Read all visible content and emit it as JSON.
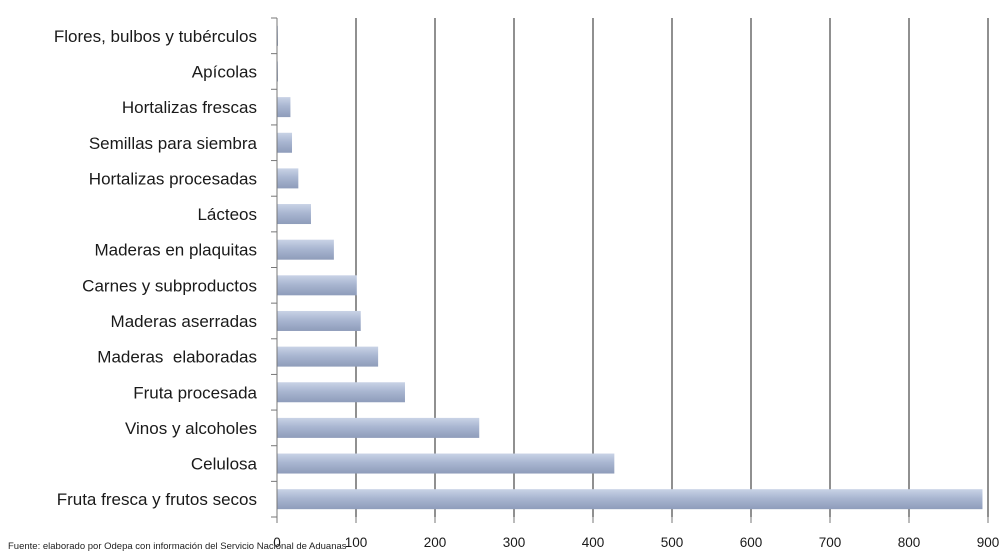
{
  "chart_data": {
    "type": "bar",
    "orientation": "horizontal",
    "categories": [
      "Fruta fresca y frutos secos",
      "Celulosa",
      "Vinos y alcoholes",
      "Fruta procesada",
      "Maderas  elaboradas",
      "Maderas aserradas",
      "Carnes y subproductos",
      "Maderas en plaquitas",
      "Lácteos",
      "Hortalizas procesadas",
      "Semillas para siembra",
      "Hortalizas frescas",
      "Apícolas",
      "Flores, bulbos y tubérculos"
    ],
    "values": [
      893,
      427,
      256,
      162,
      128,
      106,
      101,
      72,
      43,
      27,
      19,
      17,
      1,
      1
    ],
    "xlim": [
      0,
      900
    ],
    "xticks": [
      "0",
      "100",
      "200",
      "300",
      "400",
      "500",
      "600",
      "700",
      "800",
      "900"
    ],
    "title": "",
    "xlabel": "",
    "ylabel": "",
    "grid": "vertical",
    "legend": "none",
    "bar_color": "#a6b3cf"
  },
  "note": "Fuente:  elaborado por  Odepa con información del Servicio Nacional de Aduanas"
}
